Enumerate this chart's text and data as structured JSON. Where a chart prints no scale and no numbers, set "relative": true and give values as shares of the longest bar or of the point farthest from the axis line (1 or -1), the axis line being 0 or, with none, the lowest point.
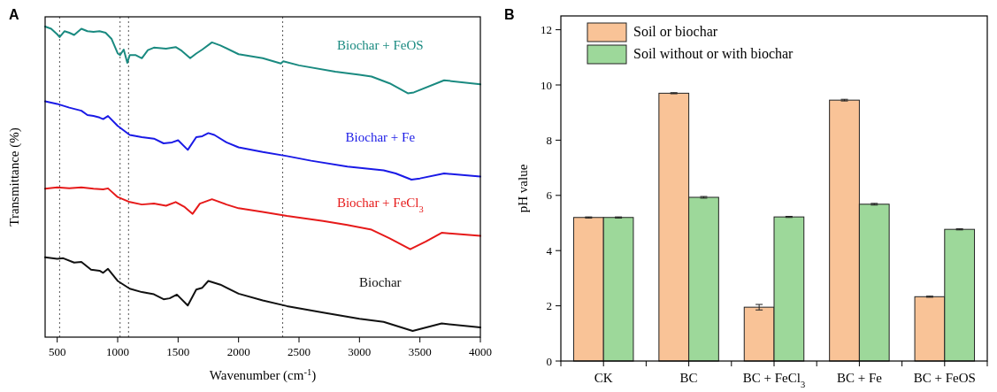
{
  "chart_data": [
    {
      "type": "line",
      "title": "A",
      "xlabel": "Wavenumber (cm$^{-1}$)",
      "ylabel": "Transmittance (%)",
      "relative": true,
      "tick_labels": "x",
      "legend": false,
      "grid": false,
      "line_style": "solid",
      "marker": "none",
      "xlim": [
        400,
        4000
      ],
      "xticks": [
        500,
        1000,
        1500,
        2000,
        2500,
        3000,
        3500,
        4000
      ],
      "ref_lines": [
        {
          "axis": "x",
          "value": 520,
          "line_style": "dotted",
          "color": "#555555"
        },
        {
          "axis": "x",
          "value": 1020,
          "line_style": "dotted",
          "color": "#555555"
        },
        {
          "axis": "x",
          "value": 1090,
          "line_style": "dotted",
          "color": "#555555"
        },
        {
          "axis": "x",
          "value": 2365,
          "line_style": "dotted",
          "color": "#555555"
        }
      ],
      "series": [
        {
          "name": "Biochar + FeOS",
          "color": "#1a8a80",
          "x": [
            400,
            450,
            500,
            520,
            560,
            600,
            640,
            700,
            750,
            800,
            850,
            900,
            950,
            1000,
            1020,
            1050,
            1080,
            1100,
            1150,
            1200,
            1250,
            1300,
            1400,
            1480,
            1530,
            1600,
            1650,
            1700,
            1780,
            1850,
            2000,
            2200,
            2350,
            2370,
            2500,
            2800,
            3000,
            3100,
            3250,
            3400,
            3450,
            3700,
            4000
          ],
          "values": [
            1,
            0.993,
            0.975,
            0.966,
            0.985,
            0.98,
            0.973,
            0.993,
            0.985,
            0.983,
            0.985,
            0.98,
            0.96,
            0.914,
            0.908,
            0.926,
            0.883,
            0.908,
            0.908,
            0.898,
            0.924,
            0.932,
            0.929,
            0.934,
            0.922,
            0.898,
            0.913,
            0.926,
            0.949,
            0.939,
            0.911,
            0.898,
            0.881,
            0.888,
            0.875,
            0.855,
            0.845,
            0.839,
            0.817,
            0.785,
            0.788,
            0.827,
            0.814
          ]
        },
        {
          "name": "Biochar + Fe",
          "color": "#1a1ae6",
          "x": [
            400,
            500,
            600,
            700,
            750,
            800,
            850,
            880,
            920,
            1000,
            1100,
            1200,
            1300,
            1380,
            1450,
            1500,
            1580,
            1650,
            1700,
            1750,
            1800,
            1900,
            2000,
            2200,
            2400,
            2600,
            2900,
            3200,
            3300,
            3430,
            3500,
            3700,
            4000
          ],
          "values": [
            0.759,
            0.751,
            0.739,
            0.729,
            0.715,
            0.712,
            0.707,
            0.702,
            0.712,
            0.68,
            0.651,
            0.644,
            0.639,
            0.624,
            0.627,
            0.634,
            0.603,
            0.644,
            0.647,
            0.657,
            0.651,
            0.627,
            0.611,
            0.596,
            0.583,
            0.568,
            0.549,
            0.537,
            0.527,
            0.507,
            0.511,
            0.527,
            0.517
          ]
        },
        {
          "name": "Biochar + FeCl$_{3}$",
          "color": "#e61a1a",
          "x": [
            400,
            500,
            600,
            700,
            800,
            880,
            920,
            1000,
            1100,
            1200,
            1300,
            1400,
            1480,
            1550,
            1620,
            1680,
            1780,
            1900,
            2000,
            2200,
            2400,
            2700,
            2900,
            3100,
            3250,
            3420,
            3550,
            3680,
            4000
          ],
          "values": [
            0.478,
            0.482,
            0.479,
            0.482,
            0.478,
            0.476,
            0.479,
            0.451,
            0.435,
            0.427,
            0.43,
            0.423,
            0.435,
            0.42,
            0.397,
            0.43,
            0.444,
            0.427,
            0.415,
            0.403,
            0.39,
            0.374,
            0.361,
            0.346,
            0.318,
            0.283,
            0.308,
            0.336,
            0.326
          ]
        },
        {
          "name": "Biochar",
          "color": "#111111",
          "x": [
            400,
            500,
            550,
            640,
            700,
            780,
            850,
            880,
            920,
            1000,
            1100,
            1200,
            1300,
            1380,
            1430,
            1490,
            1580,
            1650,
            1700,
            1750,
            1850,
            2000,
            2200,
            2400,
            2700,
            3000,
            3200,
            3440,
            3680,
            4000
          ],
          "values": [
            0.257,
            0.252,
            0.254,
            0.24,
            0.242,
            0.217,
            0.214,
            0.207,
            0.22,
            0.181,
            0.156,
            0.145,
            0.138,
            0.122,
            0.125,
            0.137,
            0.102,
            0.153,
            0.159,
            0.181,
            0.169,
            0.14,
            0.118,
            0.1,
            0.079,
            0.059,
            0.049,
            0.02,
            0.044,
            0.031
          ]
        }
      ]
    },
    {
      "type": "bar",
      "title": "B",
      "ylabel": "pH value",
      "legend": "top left",
      "grid": false,
      "ylim": [
        0,
        12.5
      ],
      "yticks": [
        0,
        2,
        4,
        6,
        8,
        10,
        12
      ],
      "categories": [
        "CK",
        "BC",
        "BC + FeCl$_{3}$",
        "BC + Fe",
        "BC + FeOS"
      ],
      "series": [
        {
          "name": "Soil or biochar",
          "color": "#f9c397",
          "values": [
            5.2,
            9.7,
            1.95,
            9.45,
            2.33
          ],
          "errors": [
            0.02,
            0.02,
            0.1,
            0.03,
            0.02
          ]
        },
        {
          "name": "Soil without or with biochar",
          "color": "#9dd89a",
          "values": [
            5.2,
            5.93,
            5.22,
            5.68,
            4.77
          ],
          "errors": [
            0.02,
            0.03,
            0.02,
            0.03,
            0.02
          ]
        }
      ]
    }
  ]
}
